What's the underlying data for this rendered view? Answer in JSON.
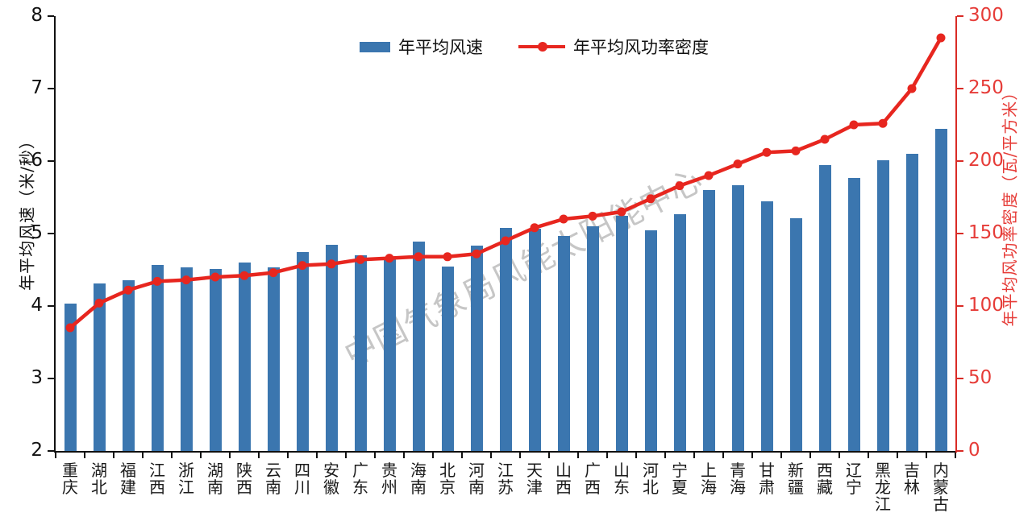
{
  "watermark": {
    "text": "中国气象局风能太阳能中心"
  },
  "legend": {
    "items": [
      {
        "label": "年平均风速",
        "type": "bar",
        "color": "#3b76af"
      },
      {
        "label": "年平均风功率密度",
        "type": "line",
        "color": "#e7261f"
      }
    ]
  },
  "chart_data": {
    "type": "bar",
    "title": "",
    "grid": false,
    "legend_position": "top-center",
    "categories": [
      "重庆",
      "湖北",
      "福建",
      "江西",
      "浙江",
      "湖南",
      "陕西",
      "云南",
      "四川",
      "安徽",
      "广东",
      "贵州",
      "海南",
      "北京",
      "河南",
      "江苏",
      "天津",
      "山西",
      "广西",
      "山东",
      "河北",
      "宁夏",
      "上海",
      "青海",
      "甘肃",
      "新疆",
      "西藏",
      "辽宁",
      "黑龙江",
      "吉林",
      "内蒙古"
    ],
    "series": [
      {
        "name": "年平均风速",
        "type": "bar",
        "axis": "left",
        "color": "#3b76af",
        "values": [
          4.03,
          4.31,
          4.36,
          4.57,
          4.53,
          4.51,
          4.6,
          4.53,
          4.75,
          4.84,
          4.7,
          4.65,
          4.89,
          4.54,
          4.83,
          5.08,
          5.07,
          4.97,
          5.1,
          5.24,
          5.05,
          5.27,
          5.6,
          5.67,
          5.44,
          5.21,
          5.95,
          5.77,
          6.01,
          6.1,
          6.45
        ]
      },
      {
        "name": "年平均风功率密度",
        "type": "line",
        "axis": "right",
        "color": "#e7261f",
        "values": [
          85,
          102,
          111,
          117,
          118,
          120,
          121,
          123,
          128,
          129,
          132,
          133,
          134,
          134,
          136,
          145,
          154,
          160,
          162,
          165,
          174,
          183,
          190,
          198,
          206,
          207,
          215,
          225,
          226,
          250,
          285
        ]
      }
    ],
    "left_axis": {
      "label": "年平均风速（米/秒）",
      "min": 2,
      "max": 8,
      "ticks": [
        2,
        3,
        4,
        5,
        6,
        7,
        8
      ],
      "color": "#111111"
    },
    "right_axis": {
      "label": "年平均风功率密度（瓦/平方米）",
      "min": 0,
      "max": 300,
      "ticks": [
        0,
        50,
        100,
        150,
        200,
        250,
        300
      ],
      "color": "#e63c38"
    }
  }
}
